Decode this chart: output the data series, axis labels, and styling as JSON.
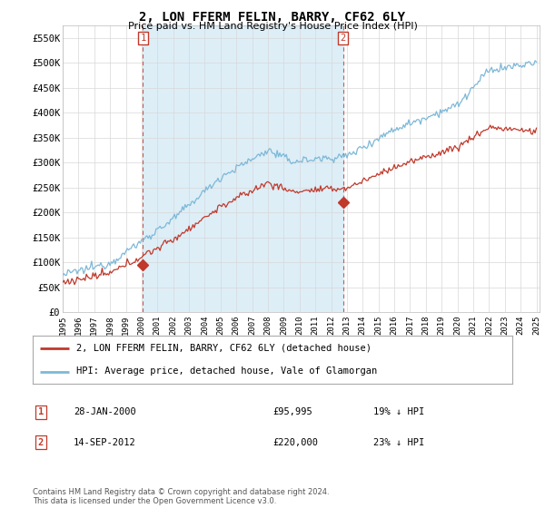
{
  "title": "2, LON FFERM FELIN, BARRY, CF62 6LY",
  "subtitle": "Price paid vs. HM Land Registry's House Price Index (HPI)",
  "ylim": [
    0,
    575000
  ],
  "yticks": [
    0,
    50000,
    100000,
    150000,
    200000,
    250000,
    300000,
    350000,
    400000,
    450000,
    500000,
    550000
  ],
  "ytick_labels": [
    "£0",
    "£50K",
    "£100K",
    "£150K",
    "£200K",
    "£250K",
    "£300K",
    "£350K",
    "£400K",
    "£450K",
    "£500K",
    "£550K"
  ],
  "hpi_color": "#7db8d8",
  "hpi_fill_color": "#ddeef7",
  "price_color": "#c0392b",
  "vline_color": "#c0392b",
  "marker1_year": 2000.07,
  "marker1_value": 95995,
  "marker2_year": 2012.71,
  "marker2_value": 220000,
  "legend_line1": "2, LON FFERM FELIN, BARRY, CF62 6LY (detached house)",
  "legend_line2": "HPI: Average price, detached house, Vale of Glamorgan",
  "table_row1": [
    "1",
    "28-JAN-2000",
    "£95,995",
    "19% ↓ HPI"
  ],
  "table_row2": [
    "2",
    "14-SEP-2012",
    "£220,000",
    "23% ↓ HPI"
  ],
  "footnote": "Contains HM Land Registry data © Crown copyright and database right 2024.\nThis data is licensed under the Open Government Licence v3.0.",
  "background_color": "#ffffff",
  "grid_color": "#d8d8d8"
}
